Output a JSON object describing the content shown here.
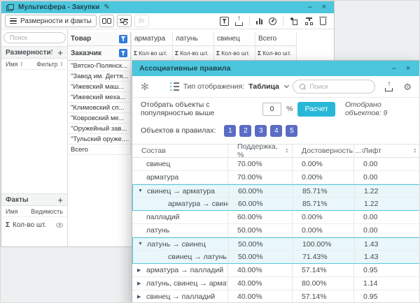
{
  "icons": {
    "sigma": "Σ",
    "pencil": "✎",
    "gear": "⚙",
    "swirl": "✻",
    "minimize": "–",
    "close": "×",
    "plus": "+",
    "sort_asc": "▲",
    "sort_desc": "▼",
    "fn": "fn"
  },
  "colors": {
    "titlebar_teal": "#4cc6dc",
    "filter_blue": "#2f7cdb",
    "calc_cyan": "#27b8d8",
    "object_indigo": "#5b6cc4",
    "highlight_bg": "#e9f7fb",
    "highlight_border": "#57c8de"
  },
  "main_window": {
    "title": "Мультисфера - Закупки",
    "toolbar": {
      "dims_facts_button": "Размерности и факты"
    },
    "sidebar": {
      "search_placeholder": "Поиск",
      "dimensions_title": "Размерности",
      "dims_name_col": "Имя",
      "dims_filter_col": "Фильтр",
      "facts_title": "Факты",
      "facts_name_col": "Имя",
      "facts_visibility_col": "Видимость",
      "fact_item": "Кол-во шт."
    },
    "pivot": {
      "col_dimension": "Товар",
      "row_dimension": "Заказчик",
      "measure": "Кол-во шт.",
      "columns": [
        "арматура",
        "латунь",
        "свинец",
        "Всего"
      ],
      "rows": [
        "\"Вятско-Полянск...",
        "\"Завод им. Дегтя...",
        "\"Ижевский маш...",
        "\"Ижевский меха...",
        "\"Климовский сп...",
        "\"Ковровский ме...",
        "\"Оружейный зав...",
        "\"Тульский оруже....",
        "Всего"
      ]
    }
  },
  "dialog": {
    "title": "Ассоциативные правила",
    "display_type_label": "Тип отображения:",
    "display_type_value": "Таблица",
    "search_placeholder": "Поиск",
    "filter_label": "Отобрать объекты с популярностью выше",
    "threshold_value": "0",
    "percent_sign": "%",
    "calc_button": "Расчет",
    "selected_info": "Отобрано объектов: 9",
    "objects_label": "Объектов в правилах:",
    "object_buttons": [
      "1",
      "2",
      "3",
      "4",
      "5"
    ],
    "table": {
      "headers": [
        "Состав",
        "Поддержка, %",
        "Достоверность,...",
        "Лифт"
      ],
      "rows": [
        {
          "composition": "свинец",
          "support": "70.00%",
          "confidence": "0.00%",
          "lift": "0.00",
          "arrow": "",
          "cls": ""
        },
        {
          "composition": "арматура",
          "support": "70.00%",
          "confidence": "0.00%",
          "lift": "0.00",
          "arrow": "",
          "cls": ""
        },
        {
          "composition": "свинец → арматура",
          "support": "60.00%",
          "confidence": "85.71%",
          "lift": "1.22",
          "arrow": "▼",
          "cls": "hl top"
        },
        {
          "composition": "арматура → свинец",
          "support": "60.00%",
          "confidence": "85.71%",
          "lift": "1.22",
          "arrow": "",
          "cls": "hl bot indent"
        },
        {
          "composition": "палладий",
          "support": "60.00%",
          "confidence": "0.00%",
          "lift": "0.00",
          "arrow": "",
          "cls": ""
        },
        {
          "composition": "латунь",
          "support": "50.00%",
          "confidence": "0.00%",
          "lift": "0.00",
          "arrow": "",
          "cls": ""
        },
        {
          "composition": "латунь → свинец",
          "support": "50.00%",
          "confidence": "100.00%",
          "lift": "1.43",
          "arrow": "▼",
          "cls": "hl top"
        },
        {
          "composition": "свинец → латунь",
          "support": "50.00%",
          "confidence": "71.43%",
          "lift": "1.43",
          "arrow": "",
          "cls": "hl bot indent"
        },
        {
          "composition": "арматура → палладий",
          "support": "40.00%",
          "confidence": "57.14%",
          "lift": "0.95",
          "arrow": "▶",
          "cls": ""
        },
        {
          "composition": "латунь, свинец → арматура",
          "support": "40.00%",
          "confidence": "80.00%",
          "lift": "1.14",
          "arrow": "▶",
          "cls": ""
        },
        {
          "composition": "свинец → палладий",
          "support": "40.00%",
          "confidence": "57.14%",
          "lift": "0.95",
          "arrow": "▶",
          "cls": ""
        }
      ]
    }
  }
}
